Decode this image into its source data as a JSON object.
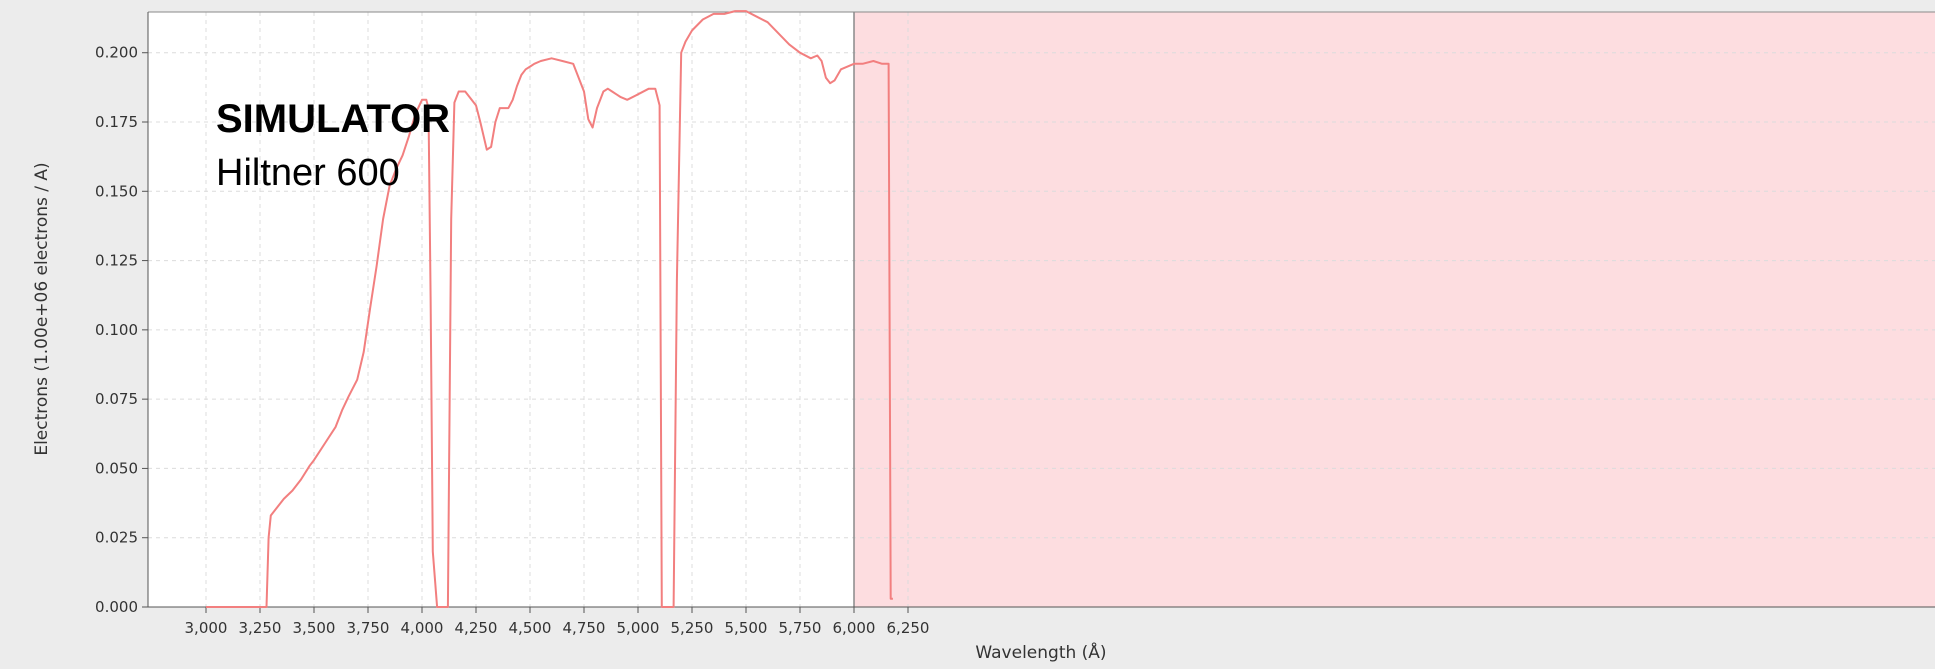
{
  "chart_data": {
    "type": "line",
    "title": "",
    "xlabel": "Wavelength (Å)",
    "ylabel": "Electrons (1.00e+06 electrons / A)",
    "xlim": [
      2900,
      6340
    ],
    "ylim": [
      0.0,
      0.215
    ],
    "xticks": [
      3000,
      3250,
      3500,
      3750,
      4000,
      4250,
      4500,
      4750,
      5000,
      5250,
      5500,
      5750,
      6000,
      6250
    ],
    "xtick_labels": [
      "3,000",
      "3,250",
      "3,500",
      "3,750",
      "4,000",
      "4,250",
      "4,500",
      "4,750",
      "5,000",
      "5,250",
      "5,500",
      "5,750",
      "6,000",
      "6,250"
    ],
    "yticks": [
      0.0,
      0.025,
      0.05,
      0.075,
      0.1,
      0.125,
      0.15,
      0.175,
      0.2
    ],
    "ytick_labels": [
      "0.000",
      "0.025",
      "0.050",
      "0.075",
      "0.100",
      "0.125",
      "0.150",
      "0.175",
      "0.200"
    ],
    "grid": true,
    "line_color": "#f27f7f",
    "highlight_region": {
      "x_start": 6000,
      "x_end": 6340,
      "color": "#fddde0",
      "edge_color": "#8a8a8a"
    },
    "annotation": {
      "title": "SIMULATOR",
      "subtitle": "Hiltner 600"
    },
    "series": [
      {
        "x": [
          3000,
          3100,
          3200,
          3280,
          3290,
          3300,
          3320,
          3360,
          3400,
          3440,
          3480,
          3500,
          3550,
          3600,
          3630,
          3660,
          3700,
          3730,
          3760,
          3790,
          3820,
          3850,
          3880,
          3910,
          3940,
          3970,
          4000,
          4020,
          4030,
          4040,
          4050,
          4070,
          4080,
          4090,
          4110,
          4120,
          4135,
          4150,
          4170,
          4200,
          4250,
          4270,
          4300,
          4320,
          4340,
          4360,
          4380,
          4400,
          4420,
          4440,
          4460,
          4480,
          4500,
          4520,
          4550,
          4600,
          4650,
          4700,
          4750,
          4770,
          4790,
          4810,
          4840,
          4860,
          4880,
          4900,
          4920,
          4950,
          5000,
          5050,
          5080,
          5100,
          5110,
          5130,
          5150,
          5165,
          5180,
          5200,
          5220,
          5250,
          5300,
          5350,
          5400,
          5450,
          5500,
          5550,
          5600,
          5650,
          5700,
          5750,
          5800,
          5830,
          5850,
          5870,
          5890,
          5910,
          5940,
          5970,
          6000,
          6040,
          6090,
          6130,
          6160,
          6170,
          6180
        ],
        "values": [
          0.0,
          0.0,
          0.0,
          0.0,
          0.025,
          0.033,
          0.035,
          0.039,
          0.042,
          0.046,
          0.051,
          0.053,
          0.059,
          0.065,
          0.071,
          0.076,
          0.082,
          0.092,
          0.108,
          0.123,
          0.14,
          0.152,
          0.158,
          0.163,
          0.17,
          0.178,
          0.183,
          0.183,
          0.18,
          0.112,
          0.02,
          0.0,
          0.0,
          0.0,
          0.0,
          0.0,
          0.14,
          0.182,
          0.186,
          0.186,
          0.181,
          0.175,
          0.165,
          0.166,
          0.175,
          0.18,
          0.18,
          0.18,
          0.183,
          0.188,
          0.192,
          0.194,
          0.195,
          0.196,
          0.197,
          0.198,
          0.197,
          0.196,
          0.186,
          0.176,
          0.173,
          0.18,
          0.186,
          0.187,
          0.186,
          0.185,
          0.184,
          0.183,
          0.185,
          0.187,
          0.187,
          0.181,
          0.0,
          0.0,
          0.0,
          0.0,
          0.118,
          0.2,
          0.204,
          0.208,
          0.212,
          0.214,
          0.214,
          0.215,
          0.215,
          0.213,
          0.211,
          0.207,
          0.203,
          0.2,
          0.198,
          0.199,
          0.197,
          0.191,
          0.189,
          0.19,
          0.194,
          0.195,
          0.196,
          0.196,
          0.197,
          0.196,
          0.196,
          0.003,
          0.003
        ]
      }
    ]
  }
}
